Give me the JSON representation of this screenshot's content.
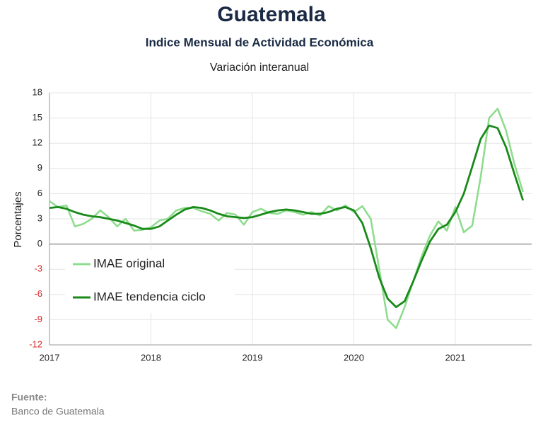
{
  "chart_data": {
    "type": "line",
    "title": "Guatemala",
    "subtitle": "Indice Mensual de  Actividad Económica",
    "caption": "Variación interanual",
    "y_label": "Porcentajes",
    "source_label": "Fuente:",
    "source": "Banco de Guatemala",
    "categories": [
      "2017",
      null,
      null,
      null,
      null,
      null,
      null,
      null,
      null,
      null,
      null,
      null,
      "2018",
      null,
      null,
      null,
      null,
      null,
      null,
      null,
      null,
      null,
      null,
      null,
      "2019",
      null,
      null,
      null,
      null,
      null,
      null,
      null,
      null,
      null,
      null,
      null,
      "2020",
      null,
      null,
      null,
      null,
      null,
      null,
      null,
      null,
      null,
      null,
      null,
      "2021",
      null,
      null,
      null,
      null,
      null,
      null,
      null,
      null
    ],
    "series": [
      {
        "name": "IMAE original",
        "color": "#8fdc8f",
        "values": [
          5.1,
          4.4,
          4.6,
          2.1,
          2.4,
          3.0,
          4.0,
          3.2,
          2.1,
          3.0,
          1.6,
          1.7,
          2.0,
          2.8,
          3.0,
          4.0,
          4.3,
          4.3,
          3.9,
          3.6,
          2.8,
          3.7,
          3.5,
          2.3,
          3.8,
          4.2,
          3.7,
          3.6,
          4.0,
          3.8,
          3.5,
          3.8,
          3.4,
          4.5,
          4.0,
          4.6,
          3.8,
          4.5,
          3.0,
          -3.0,
          -9.0,
          -10.0,
          -7.5,
          -4.5,
          -1.5,
          1.0,
          2.7,
          1.6,
          4.4,
          1.4,
          2.2,
          8.0,
          15.0,
          16.1,
          13.5,
          9.5,
          6.2
        ]
      },
      {
        "name": "IMAE tendencia ciclo",
        "color": "#1a8a1a",
        "values": [
          4.3,
          4.4,
          4.2,
          3.8,
          3.5,
          3.3,
          3.2,
          3.0,
          2.8,
          2.5,
          2.2,
          1.8,
          1.8,
          2.1,
          2.8,
          3.5,
          4.1,
          4.4,
          4.3,
          4.0,
          3.6,
          3.3,
          3.2,
          3.1,
          3.2,
          3.5,
          3.8,
          4.0,
          4.1,
          4.0,
          3.8,
          3.6,
          3.6,
          3.8,
          4.2,
          4.4,
          4.0,
          2.5,
          -0.5,
          -4.0,
          -6.5,
          -7.5,
          -6.8,
          -4.5,
          -2.0,
          0.3,
          1.8,
          2.3,
          3.8,
          6.0,
          9.2,
          12.5,
          14.1,
          13.8,
          11.5,
          8.3,
          5.2
        ]
      }
    ],
    "ylim": [
      -12,
      18
    ],
    "yticks": [
      -12,
      -9,
      -6,
      -3,
      0,
      3,
      6,
      9,
      12,
      15,
      18
    ],
    "negative_tick_color": "#d62728",
    "grid": true,
    "legend": "lower left"
  }
}
